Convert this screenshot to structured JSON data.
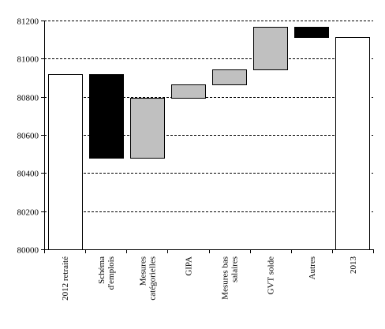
{
  "chart_data": {
    "type": "waterfall",
    "categories": [
      "2012 retraité",
      "Schéma d'emplois",
      "Mesures catégorielles",
      "GIPA",
      "Mesures bas salaires",
      "GVT solde",
      "Autres",
      "2013"
    ],
    "category_lines": [
      [
        "2012 retraité"
      ],
      [
        "Schéma",
        "d'emplois"
      ],
      [
        "Mesures",
        "catégorielles"
      ],
      [
        "GIPA"
      ],
      [
        "Mesures bas",
        "salaires"
      ],
      [
        "GVT solde"
      ],
      [
        "Autres"
      ],
      [
        "2013"
      ]
    ],
    "bars": [
      {
        "category": "2012 retraité",
        "start": 80000,
        "end": 80920,
        "kind": "total"
      },
      {
        "category": "Schéma d'emplois",
        "start": 80920,
        "end": 80480,
        "kind": "decrease"
      },
      {
        "category": "Mesures catégorielles",
        "start": 80480,
        "end": 80795,
        "kind": "increase"
      },
      {
        "category": "GIPA",
        "start": 80795,
        "end": 80865,
        "kind": "increase"
      },
      {
        "category": "Mesures bas salaires",
        "start": 80865,
        "end": 80945,
        "kind": "increase"
      },
      {
        "category": "GVT solde",
        "start": 80945,
        "end": 81165,
        "kind": "increase"
      },
      {
        "category": "Autres",
        "start": 81165,
        "end": 81115,
        "kind": "decrease"
      },
      {
        "category": "2013",
        "start": 80000,
        "end": 81115,
        "kind": "total"
      }
    ],
    "ylim": [
      80000,
      81200
    ],
    "yticks": [
      80000,
      80200,
      80400,
      80600,
      80800,
      81000,
      81200
    ],
    "grid": "horizontal-dashed",
    "colors": {
      "total": "#ffffff",
      "increase": "#c0c0c0",
      "decrease": "#000000",
      "stroke": "#000000"
    }
  }
}
